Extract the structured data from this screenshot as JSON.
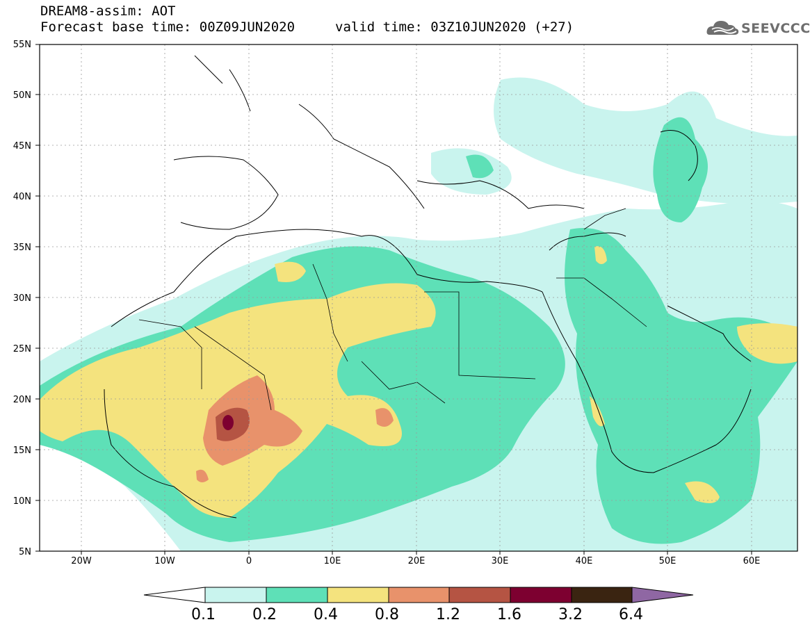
{
  "header": {
    "title_line1": "DREAM8-assim: AOT",
    "title_line2": "Forecast base time: 00Z09JUN2020",
    "title_line2b": "valid time: 03Z10JUN2020 (+27)",
    "logo_text": "SEEVCCC",
    "logo_icon": "cloud-icon"
  },
  "axes": {
    "y_labels": [
      "55N",
      "50N",
      "45N",
      "40N",
      "35N",
      "30N",
      "25N",
      "20N",
      "15N",
      "10N",
      "5N"
    ],
    "x_labels": [
      "20W",
      "10W",
      "0",
      "10E",
      "20E",
      "30E",
      "40E",
      "50E",
      "60E"
    ]
  },
  "colorbar": {
    "labels": [
      "0.1",
      "0.2",
      "0.4",
      "0.8",
      "1.2",
      "1.6",
      "3.2",
      "6.4"
    ],
    "colors": [
      "#ffffff",
      "#c9f4ee",
      "#5ee0b7",
      "#f4e37e",
      "#e8926b",
      "#b55443",
      "#7d0030",
      "#3a2411",
      "#8f67a3"
    ]
  },
  "colors": {
    "aot_01": "#c9f4ee",
    "aot_02": "#5ee0b7",
    "aot_04": "#f4e37e",
    "aot_08": "#e8926b",
    "aot_12": "#b55443",
    "aot_16": "#7d0030"
  }
}
